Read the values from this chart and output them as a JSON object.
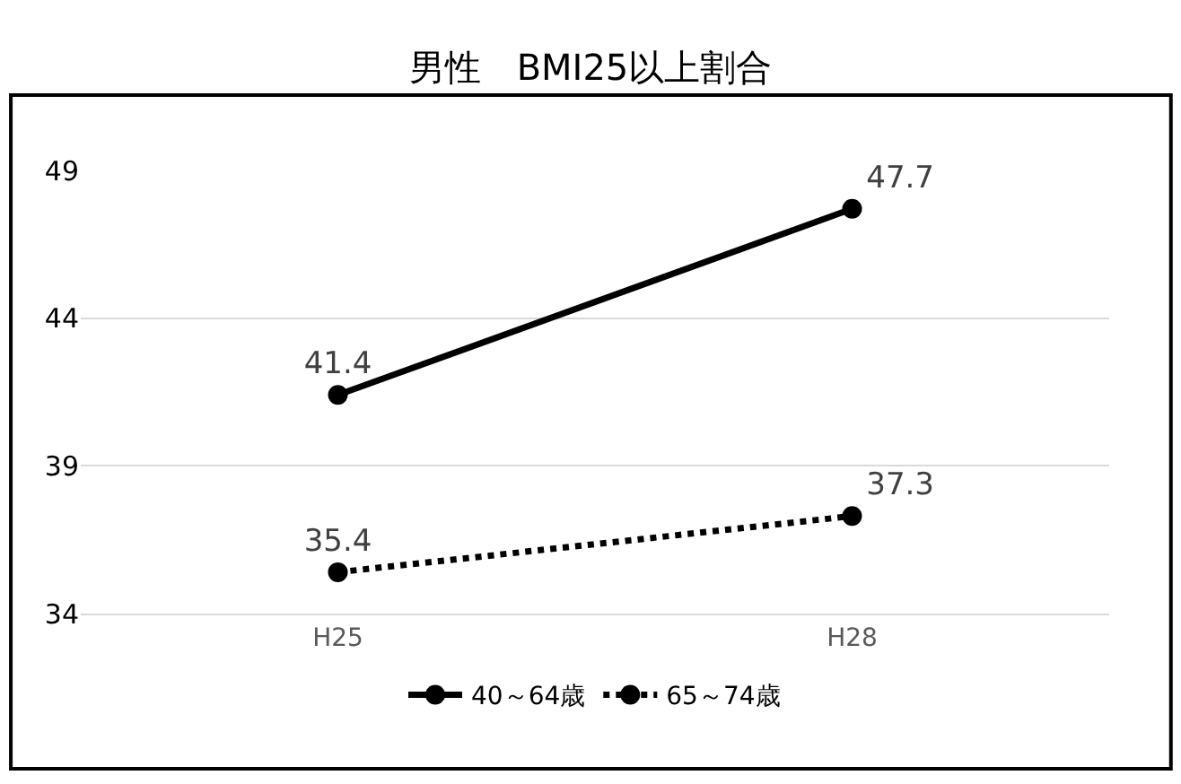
{
  "chart_data": {
    "type": "line",
    "title": "男性　BMI25以上割合",
    "categories": [
      "H25",
      "H28"
    ],
    "series": [
      {
        "name": "40～64歳",
        "color": "#000000",
        "values": [
          41.4,
          47.7
        ],
        "line_style": "solid"
      },
      {
        "name": "65～74歳",
        "color": "#000000",
        "values": [
          35.4,
          37.3
        ],
        "line_style": "dotted"
      }
    ],
    "ylim": [
      34,
      49
    ],
    "yticks": [
      34,
      39,
      44,
      49
    ],
    "grid": "y",
    "legend": "bottom",
    "marker": "circle",
    "data_labels": true
  }
}
